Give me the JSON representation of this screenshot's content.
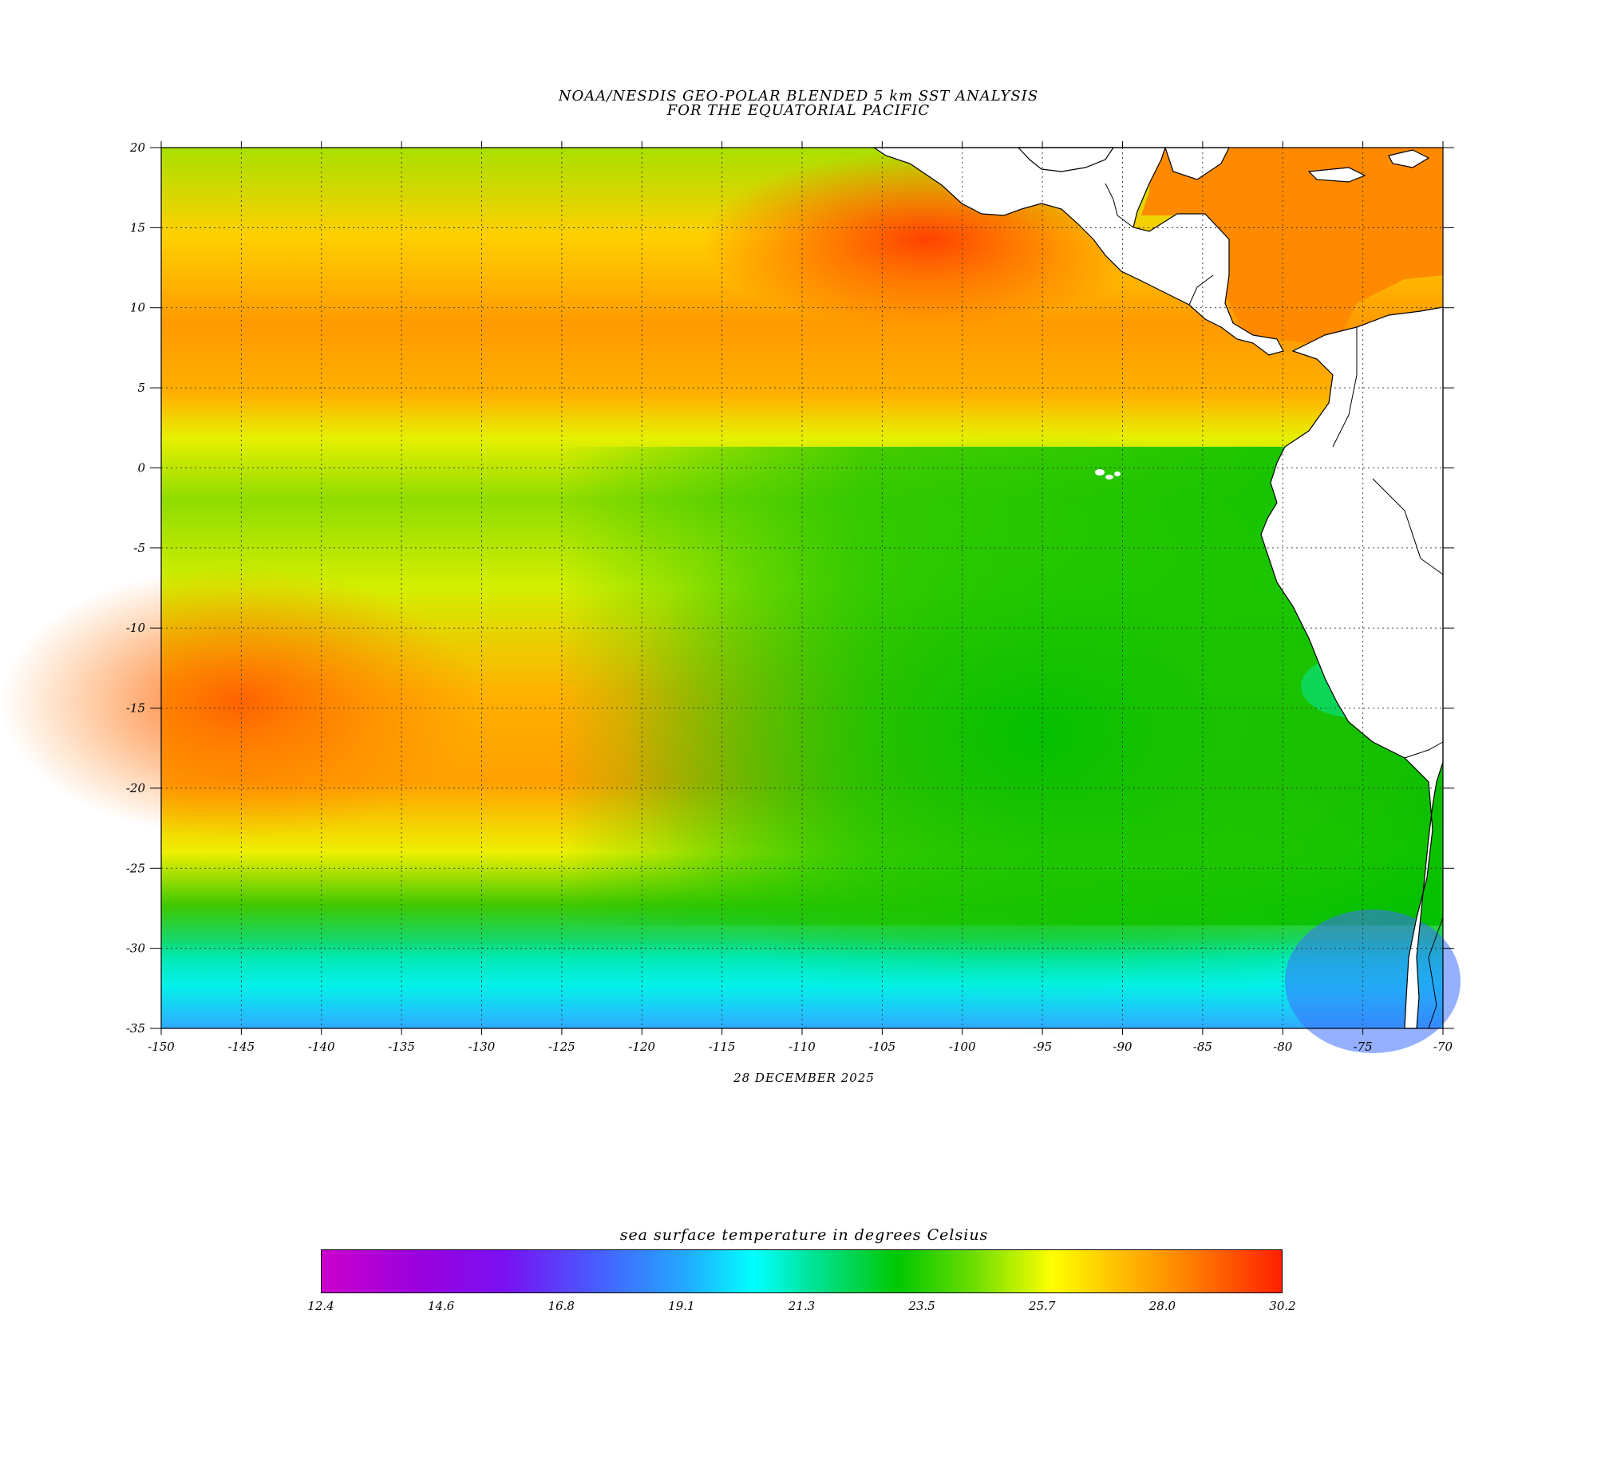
{
  "title": {
    "line1": "NOAA/NESDIS GEO-POLAR BLENDED 5 km SST ANALYSIS",
    "line2": "FOR THE EQUATORIAL PACIFIC"
  },
  "date": "28 DECEMBER 2025",
  "map": {
    "lon_range": [
      -150,
      -70
    ],
    "lat_range": [
      -35,
      20
    ],
    "lon_ticks": [
      "-150",
      "-145",
      "-140",
      "-135",
      "-130",
      "-125",
      "-120",
      "-115",
      "-110",
      "-105",
      "-100",
      "-95",
      "-90",
      "-85",
      "-80",
      "-75",
      "-70"
    ],
    "lat_ticks": [
      "20",
      "15",
      "10",
      "5",
      "0",
      "-5",
      "-10",
      "-15",
      "-20",
      "-25",
      "-30",
      "-35"
    ],
    "grid": "dotted",
    "land_color": "#ffffff"
  },
  "colorbar": {
    "title": "sea surface temperature in degrees Celsius",
    "min": 12.4,
    "max": 30.2,
    "tick_labels": [
      "12.4",
      "14.6",
      "16.8",
      "19.1",
      "21.3",
      "23.5",
      "25.7",
      "28.0",
      "30.2"
    ],
    "colors": [
      "#cc00cc",
      "#9a00dd",
      "#4a58ff",
      "#00ffff",
      "#00c800",
      "#d8f700",
      "#ffff00",
      "#ff8c00",
      "#ff2000"
    ]
  }
}
